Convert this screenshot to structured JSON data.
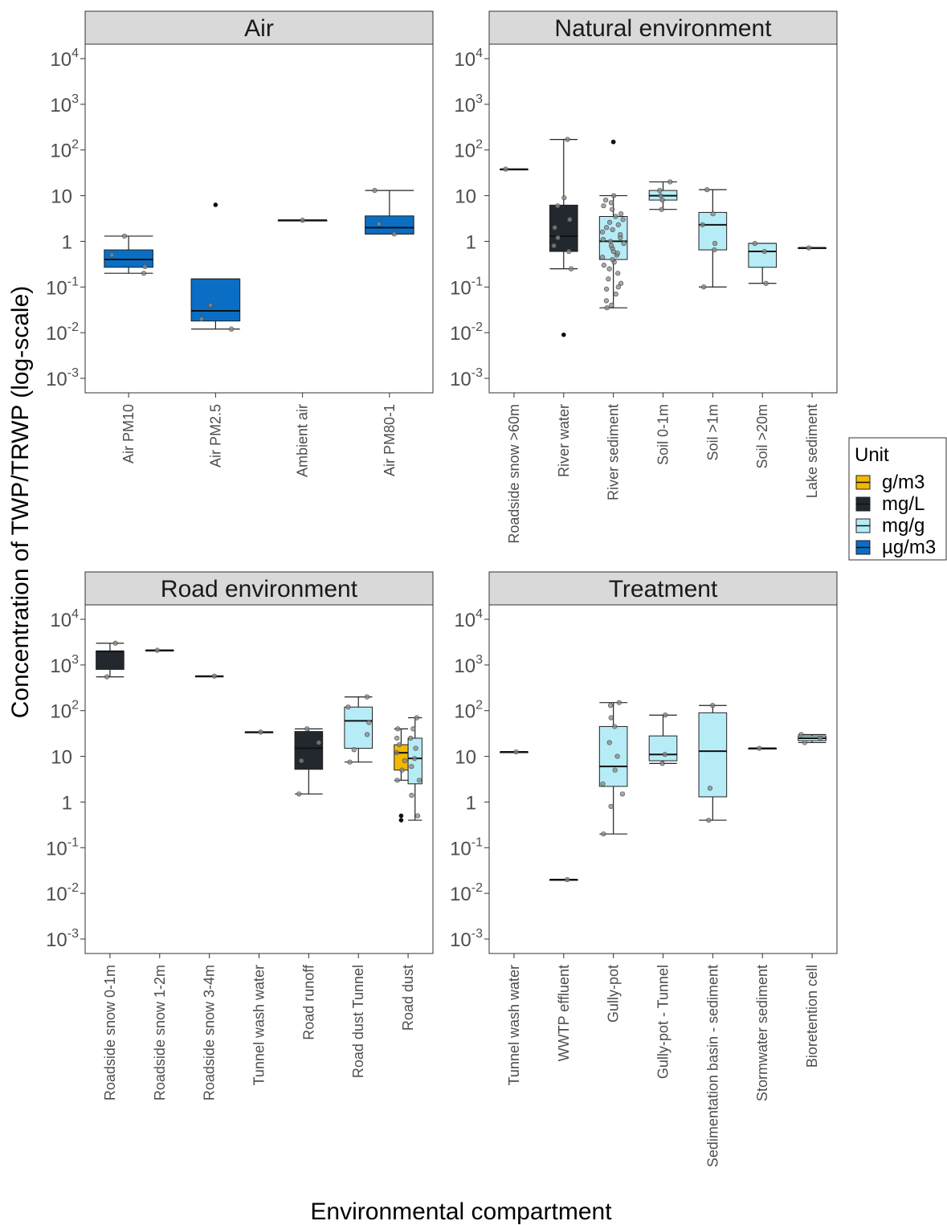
{
  "chart_data": {
    "type": "box",
    "y_scale": "log10",
    "ylim": [
      0.001,
      10000
    ],
    "y_ticks": [
      {
        "value": 0.001,
        "base": "10",
        "exp": "-3"
      },
      {
        "value": 0.01,
        "base": "10",
        "exp": "-2"
      },
      {
        "value": 0.1,
        "base": "10",
        "exp": "-1"
      },
      {
        "value": 1,
        "base": "1",
        "exp": ""
      },
      {
        "value": 10,
        "base": "10",
        "exp": ""
      },
      {
        "value": 100,
        "base": "10",
        "exp": "2"
      },
      {
        "value": 1000,
        "base": "10",
        "exp": "3"
      },
      {
        "value": 10000,
        "base": "10",
        "exp": "4"
      }
    ],
    "ylabel": "Concentration of TWP/TRWP (log-scale)",
    "xlabel": "Environmental compartment",
    "legend": {
      "title": "Unit",
      "position": "right",
      "items": [
        {
          "label": "g/m3",
          "color": "#f5b800"
        },
        {
          "label": "mg/L",
          "color": "#22282e"
        },
        {
          "label": "mg/g",
          "color": "#b6ecf6"
        },
        {
          "label": "µg/m3",
          "color": "#0a6ec4"
        }
      ]
    },
    "panels": [
      {
        "title": "Air",
        "categories": [
          "Air PM10",
          "Air PM2.5",
          "Ambient air",
          "Air PM80-1"
        ],
        "boxes": [
          {
            "category": "Air PM10",
            "unit": "µg/m3",
            "whisker_low": 0.2,
            "q1": 0.27,
            "median": 0.4,
            "q3": 0.65,
            "whisker_high": 1.3,
            "points": [
              0.2,
              0.28,
              0.5,
              1.3
            ],
            "outliers": []
          },
          {
            "category": "Air PM2.5",
            "unit": "µg/m3",
            "whisker_low": 0.012,
            "q1": 0.018,
            "median": 0.03,
            "q3": 0.15,
            "whisker_high": 0.15,
            "points": [
              0.012,
              0.02,
              0.04
            ],
            "outliers": [
              6.3
            ]
          },
          {
            "category": "Ambient air",
            "unit": "µg/m3",
            "whisker_low": 2.9,
            "q1": 2.9,
            "median": 2.9,
            "q3": 2.9,
            "whisker_high": 2.9,
            "points": [
              2.9
            ],
            "outliers": []
          },
          {
            "category": "Air PM80-1",
            "unit": "µg/m3",
            "whisker_low": 1.45,
            "q1": 1.45,
            "median": 2.0,
            "q3": 3.6,
            "whisker_high": 13.0,
            "points": [
              1.45,
              2.4,
              13.0
            ],
            "outliers": []
          }
        ]
      },
      {
        "title": "Natural environment",
        "categories": [
          "Roadside snow >60m",
          "River water",
          "River sediment",
          "Soil 0-1m",
          "Soil >1m",
          "Soil >20m",
          "Lake sediment"
        ],
        "boxes": [
          {
            "category": "Roadside snow >60m",
            "unit": "mg/g",
            "whisker_low": 38,
            "q1": 38,
            "median": 38,
            "q3": 38,
            "whisker_high": 38,
            "points": [
              38
            ],
            "outliers": []
          },
          {
            "category": "River water",
            "unit": "mg/L",
            "whisker_low": 0.25,
            "q1": 0.6,
            "median": 1.3,
            "q3": 6.2,
            "whisker_high": 170,
            "points": [
              0.25,
              0.6,
              0.8,
              1.2,
              2.0,
              3.0,
              6.0,
              9.0,
              170
            ],
            "outliers": [
              0.009
            ]
          },
          {
            "category": "River sediment",
            "unit": "mg/g",
            "whisker_low": 0.035,
            "q1": 0.4,
            "median": 1.0,
            "q3": 3.5,
            "whisker_high": 10,
            "points": [
              0.035,
              0.04,
              0.05,
              0.07,
              0.09,
              0.1,
              0.12,
              0.15,
              0.2,
              0.25,
              0.3,
              0.35,
              0.4,
              0.45,
              0.5,
              0.55,
              0.6,
              0.7,
              0.8,
              0.9,
              1.0,
              1.1,
              1.2,
              1.4,
              1.6,
              1.8,
              2.0,
              2.3,
              2.6,
              3.0,
              3.5,
              4.0,
              5.0,
              6.0,
              7.0,
              8.0,
              10.0
            ],
            "outliers": [
              150,
              150
            ]
          },
          {
            "category": "Soil 0-1m",
            "unit": "mg/g",
            "whisker_low": 5,
            "q1": 8,
            "median": 10,
            "q3": 13,
            "whisker_high": 20,
            "points": [
              5,
              8,
              10,
              13,
              20
            ],
            "outliers": []
          },
          {
            "category": "Soil >1m",
            "unit": "mg/g",
            "whisker_low": 0.1,
            "q1": 0.65,
            "median": 2.3,
            "q3": 4.3,
            "whisker_high": 13.5,
            "points": [
              0.1,
              0.65,
              0.9,
              2.3,
              4.0,
              13.5
            ],
            "outliers": []
          },
          {
            "category": "Soil >20m",
            "unit": "mg/g",
            "whisker_low": 0.12,
            "q1": 0.27,
            "median": 0.6,
            "q3": 0.9,
            "whisker_high": 0.9,
            "points": [
              0.12,
              0.6,
              0.9
            ],
            "outliers": []
          },
          {
            "category": "Lake sediment",
            "unit": "mg/g",
            "whisker_low": 0.72,
            "q1": 0.72,
            "median": 0.72,
            "q3": 0.72,
            "whisker_high": 0.72,
            "points": [
              0.72
            ],
            "outliers": []
          }
        ]
      },
      {
        "title": "Road environment",
        "categories": [
          "Roadside snow 0-1m",
          "Roadside snow 1-2m",
          "Roadside snow 3-4m",
          "Tunnel wash water",
          "Road runoff",
          "Road dust Tunnel",
          "Road dust"
        ],
        "boxes": [
          {
            "category": "Roadside snow 0-1m",
            "unit": "mg/L",
            "whisker_low": 550,
            "q1": 800,
            "median": 2000,
            "q3": 2000,
            "whisker_high": 3000,
            "points": [
              550,
              3000
            ],
            "outliers": []
          },
          {
            "category": "Roadside snow 1-2m",
            "unit": "mg/L",
            "whisker_low": 2100,
            "q1": 2100,
            "median": 2100,
            "q3": 2100,
            "whisker_high": 2100,
            "points": [
              2100
            ],
            "outliers": []
          },
          {
            "category": "Roadside snow 3-4m",
            "unit": "mg/L",
            "whisker_low": 570,
            "q1": 570,
            "median": 570,
            "q3": 570,
            "whisker_high": 570,
            "points": [
              570
            ],
            "outliers": []
          },
          {
            "category": "Tunnel wash water",
            "unit": "mg/L",
            "whisker_low": 34,
            "q1": 34,
            "median": 34,
            "q3": 34,
            "whisker_high": 34,
            "points": [
              34
            ],
            "outliers": []
          },
          {
            "category": "Road runoff",
            "unit": "mg/L",
            "whisker_low": 1.5,
            "q1": 5.2,
            "median": 15,
            "q3": 35,
            "whisker_high": 40,
            "points": [
              1.5,
              8,
              20,
              40
            ],
            "outliers": []
          },
          {
            "category": "Road dust Tunnel",
            "unit": "mg/g",
            "whisker_low": 7.5,
            "q1": 15,
            "median": 60,
            "q3": 120,
            "whisker_high": 200,
            "points": [
              7.5,
              14,
              30,
              55,
              120,
              200
            ],
            "outliers": []
          },
          {
            "category": "Road dust",
            "unit": "g/m3",
            "whisker_low": 3,
            "q1": 5,
            "median": 12,
            "q3": 18,
            "whisker_high": 40,
            "points": [
              3,
              5,
              8,
              12,
              18,
              25,
              40
            ],
            "outliers": [
              0.4,
              0.5
            ]
          },
          {
            "category": "Road dust",
            "unit": "mg/g",
            "whisker_low": 0.4,
            "q1": 2.5,
            "median": 9,
            "q3": 25,
            "whisker_high": 70,
            "points": [
              0.5,
              1.4,
              3,
              6,
              9,
              15,
              25,
              40,
              70
            ],
            "outliers": []
          }
        ]
      },
      {
        "title": "Treatment",
        "categories": [
          "Tunnel wash water",
          "WWTP effluent",
          "Gully-pot",
          "Gully-pot - Tunnel",
          "Sedimentation basin - sediment",
          "Stormwater sediment",
          "Bioretention cell"
        ],
        "boxes": [
          {
            "category": "Tunnel wash water",
            "unit": "mg/L",
            "whisker_low": 12.5,
            "q1": 12.5,
            "median": 12.5,
            "q3": 12.5,
            "whisker_high": 12.5,
            "points": [
              12.5
            ],
            "outliers": []
          },
          {
            "category": "WWTP effluent",
            "unit": "mg/L",
            "whisker_low": 0.02,
            "q1": 0.02,
            "median": 0.02,
            "q3": 0.02,
            "whisker_high": 0.02,
            "points": [
              0.02
            ],
            "outliers": []
          },
          {
            "category": "Gully-pot",
            "unit": "mg/g",
            "whisker_low": 0.2,
            "q1": 2.2,
            "median": 6,
            "q3": 45,
            "whisker_high": 150,
            "points": [
              0.2,
              0.8,
              1.5,
              2.5,
              5,
              10,
              20,
              45,
              70,
              130,
              150
            ],
            "outliers": []
          },
          {
            "category": "Gully-pot - Tunnel",
            "unit": "mg/g",
            "whisker_low": 7,
            "q1": 8,
            "median": 11,
            "q3": 28,
            "whisker_high": 80,
            "points": [
              7,
              11,
              80
            ],
            "outliers": []
          },
          {
            "category": "Sedimentation basin - sediment",
            "unit": "mg/g",
            "whisker_low": 0.4,
            "q1": 1.3,
            "median": 13,
            "q3": 90,
            "whisker_high": 130,
            "points": [
              0.4,
              2,
              130
            ],
            "outliers": []
          },
          {
            "category": "Stormwater sediment",
            "unit": "mg/g",
            "whisker_low": 15,
            "q1": 15,
            "median": 15,
            "q3": 15,
            "whisker_high": 15,
            "points": [
              15
            ],
            "outliers": []
          },
          {
            "category": "Bioretention cell",
            "unit": "mg/g",
            "whisker_low": 20,
            "q1": 22,
            "median": 25,
            "q3": 28,
            "whisker_high": 30,
            "points": [
              20,
              25,
              30
            ],
            "outliers": []
          }
        ]
      }
    ]
  }
}
